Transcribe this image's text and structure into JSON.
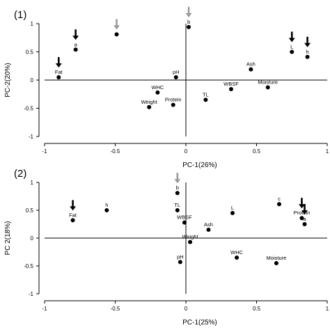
{
  "colors": {
    "arrow_black": "#000000",
    "arrow_gray": "#9a9a9a",
    "point": "#000000"
  },
  "chart_data": [
    {
      "type": "scatter",
      "panel_label": "(1)",
      "xlabel": "PC-1(26%)",
      "ylabel": "PC-2(20%)",
      "xlim": [
        -1,
        1
      ],
      "ylim": [
        -1,
        1
      ],
      "xticks": [
        "-1",
        "-0.5",
        "0",
        "0.5",
        "1"
      ],
      "yticks": [
        "-1",
        "-0.5",
        "0",
        "0.5",
        "1"
      ],
      "points": [
        {
          "label": "Fat",
          "x": -0.9,
          "y": 0.05,
          "arrow": "black"
        },
        {
          "label": "a",
          "x": -0.78,
          "y": 0.54,
          "arrow": "black"
        },
        {
          "label": "",
          "x": -0.49,
          "y": 0.81,
          "arrow": "gray"
        },
        {
          "label": "b",
          "x": 0.02,
          "y": 0.94,
          "arrow": "gray"
        },
        {
          "label": "pH",
          "x": -0.07,
          "y": 0.05
        },
        {
          "label": "WHC",
          "x": -0.2,
          "y": -0.22
        },
        {
          "label": "Weight",
          "x": -0.26,
          "y": -0.48
        },
        {
          "label": "Protein",
          "x": -0.09,
          "y": -0.44
        },
        {
          "label": "TL",
          "x": 0.14,
          "y": -0.35
        },
        {
          "label": "WBSF",
          "x": 0.32,
          "y": -0.16
        },
        {
          "label": "Ash",
          "x": 0.46,
          "y": 0.19
        },
        {
          "label": "Moisture",
          "x": 0.58,
          "y": -0.13
        },
        {
          "label": "L",
          "x": 0.75,
          "y": 0.5,
          "arrow": "black"
        },
        {
          "label": "h",
          "x": 0.86,
          "y": 0.41,
          "arrow": "black"
        }
      ]
    },
    {
      "type": "scatter",
      "panel_label": "(2)",
      "xlabel": "PC-1(25%)",
      "ylabel": "PC 2(18%)",
      "xlim": [
        -1,
        1
      ],
      "ylim": [
        -1,
        1
      ],
      "xticks": [
        "-1",
        "-0.5",
        "0",
        "0.5",
        "1"
      ],
      "yticks": [
        "-1",
        "-0.5",
        "0",
        "0.5",
        "1"
      ],
      "points": [
        {
          "label": "Fat",
          "x": -0.8,
          "y": 0.32,
          "arrow": "black"
        },
        {
          "label": "h",
          "x": -0.56,
          "y": 0.5
        },
        {
          "label": "b",
          "x": -0.06,
          "y": 0.81,
          "arrow": "gray"
        },
        {
          "label": "TL",
          "x": -0.06,
          "y": 0.5
        },
        {
          "label": "WBSF",
          "x": -0.01,
          "y": 0.28
        },
        {
          "label": "Ash",
          "x": 0.16,
          "y": 0.15
        },
        {
          "label": "Weight",
          "x": 0.03,
          "y": -0.07
        },
        {
          "label": "pH",
          "x": -0.04,
          "y": -0.43
        },
        {
          "label": "L",
          "x": 0.33,
          "y": 0.45
        },
        {
          "label": "WHC",
          "x": 0.36,
          "y": -0.35
        },
        {
          "label": "Moisture",
          "x": 0.64,
          "y": -0.45
        },
        {
          "label": "c",
          "x": 0.66,
          "y": 0.61
        },
        {
          "label": "Protein",
          "x": 0.82,
          "y": 0.36,
          "arrow": "black"
        },
        {
          "label": "a",
          "x": 0.84,
          "y": 0.25,
          "arrow": "black"
        }
      ]
    }
  ]
}
